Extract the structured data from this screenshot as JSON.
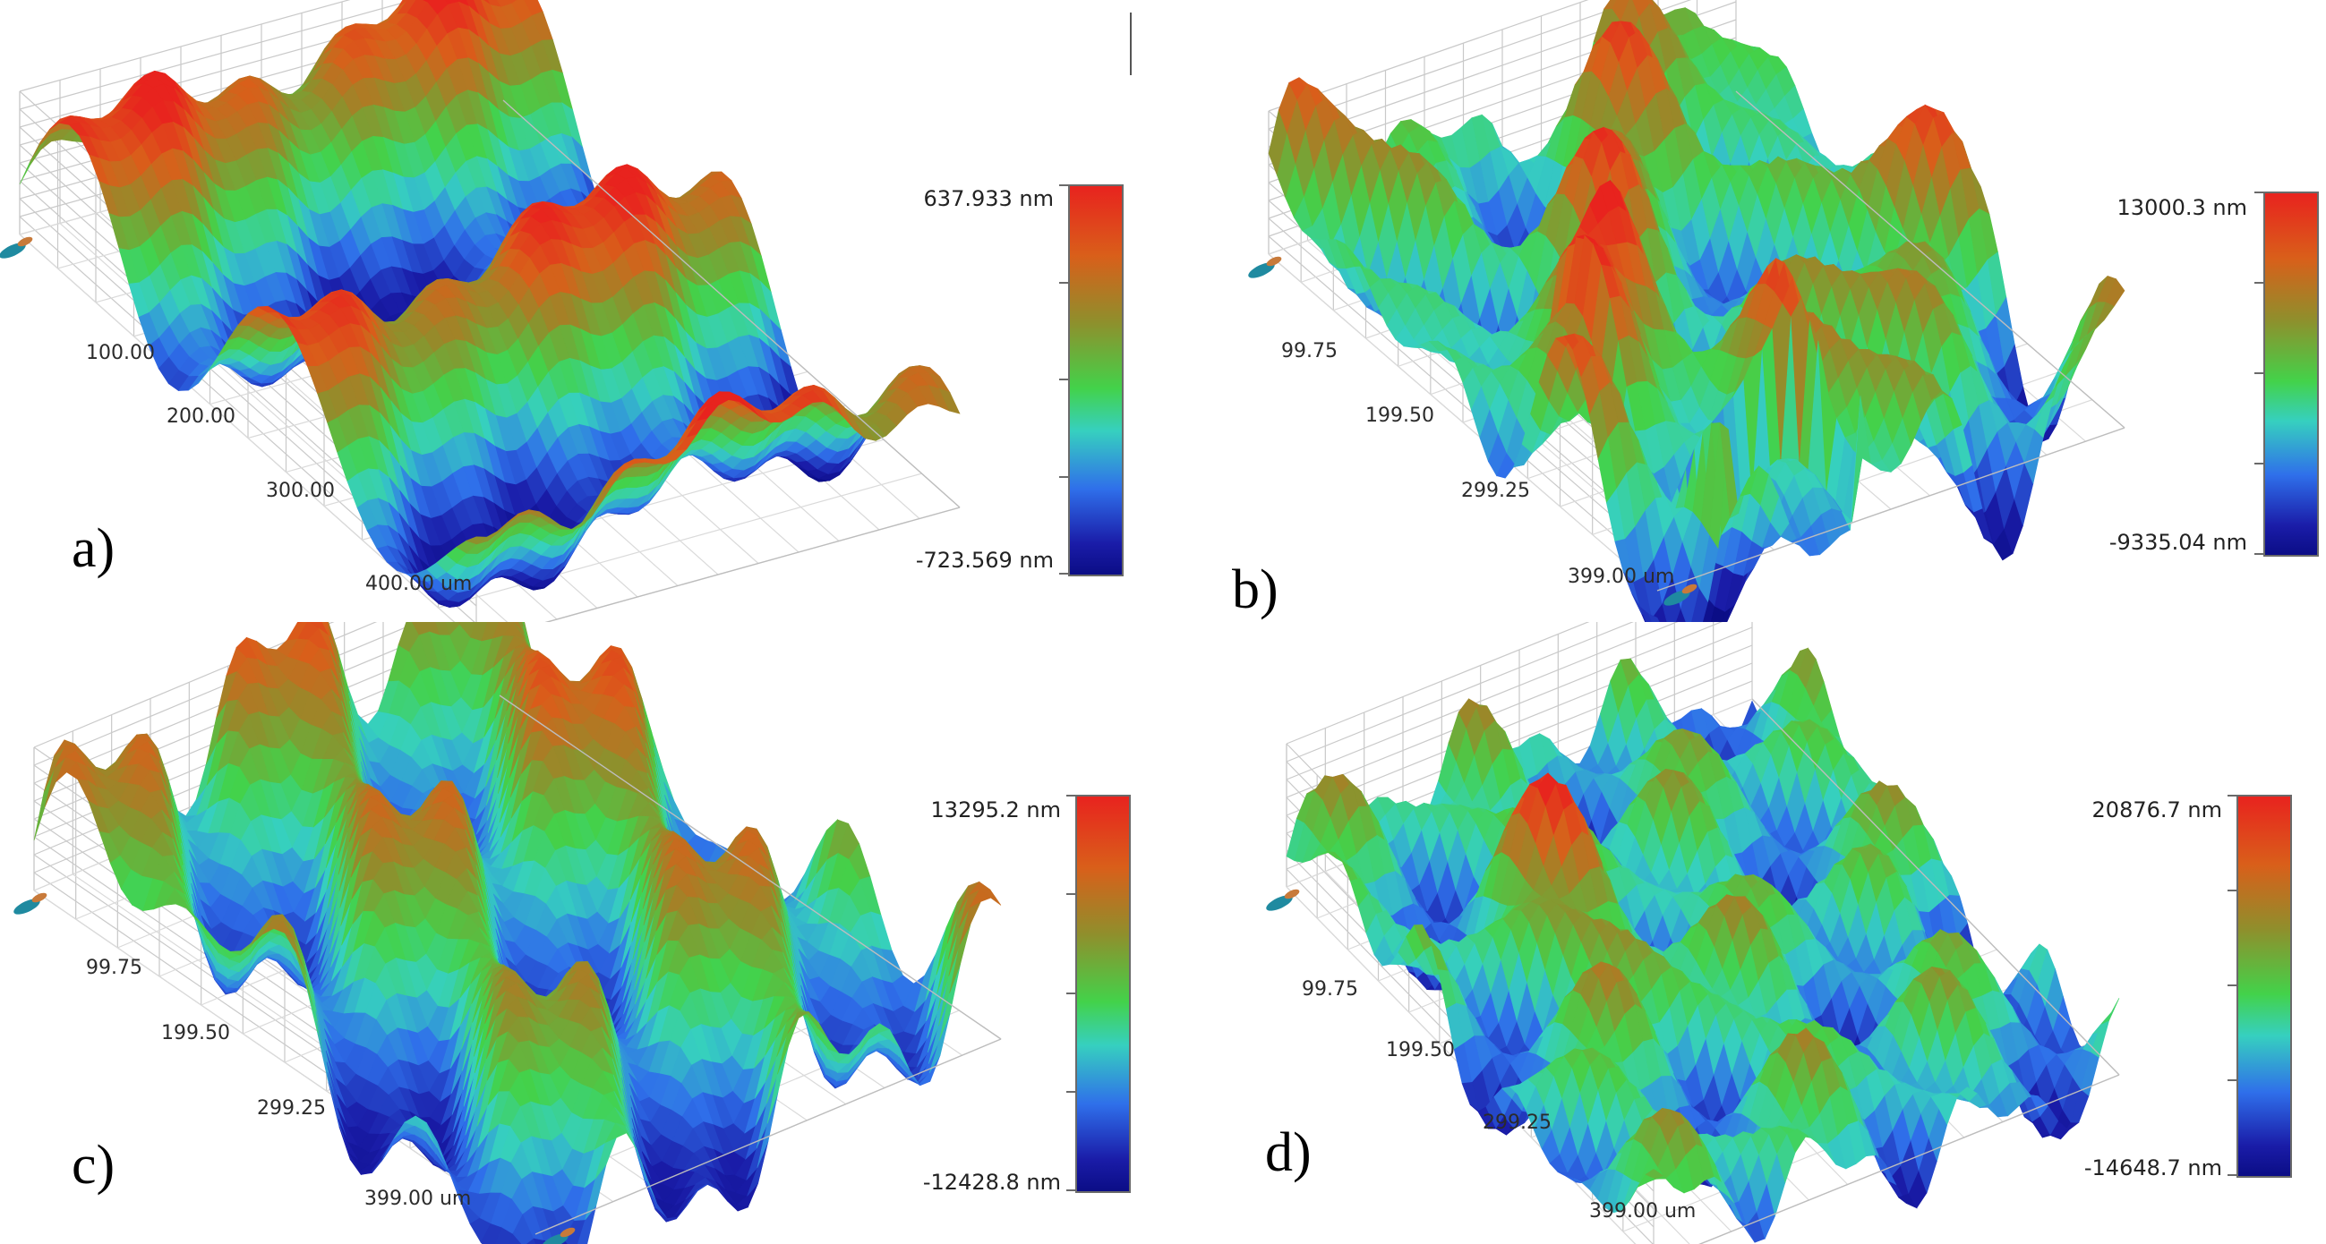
{
  "panels": [
    {
      "label": "a)",
      "axis_ticks": [
        "100.00",
        "200.00",
        "300.00",
        "400.00 um"
      ],
      "colorbar": {
        "max": "637.933 nm",
        "min": "-723.569 nm"
      }
    },
    {
      "label": "b)",
      "axis_ticks": [
        "99.75",
        "199.50",
        "299.25",
        "399.00 um"
      ],
      "colorbar": {
        "max": "13000.3 nm",
        "min": "-9335.04 nm"
      }
    },
    {
      "label": "c)",
      "axis_ticks": [
        "99.75",
        "199.50",
        "299.25",
        "399.00 um"
      ],
      "colorbar": {
        "max": "13295.2 nm",
        "min": "-12428.8 nm"
      }
    },
    {
      "label": "d)",
      "axis_ticks": [
        "99.75",
        "199.50",
        "299.25",
        "399.00 um"
      ],
      "colorbar": {
        "max": "20876.7 nm",
        "min": "-14648.7 nm"
      }
    }
  ],
  "colorscale": [
    "#0b0d86",
    "#1a1ca8",
    "#2f6fea",
    "#36d0bf",
    "#43d24a",
    "#8f8f2c",
    "#d95f1a",
    "#e8231e"
  ]
}
